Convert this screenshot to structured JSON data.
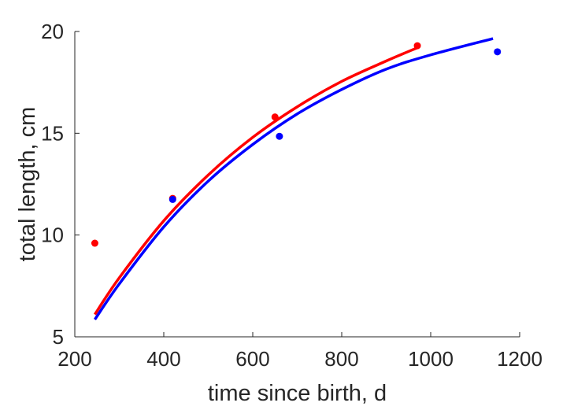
{
  "chart_data": {
    "type": "scatter",
    "title": "",
    "xlabel": "time since birth, d",
    "ylabel": "total length, cm",
    "xlim": [
      200,
      1200
    ],
    "ylim": [
      5,
      20
    ],
    "xticks": [
      200,
      400,
      600,
      800,
      1000,
      1200
    ],
    "yticks": [
      5,
      10,
      15,
      20
    ],
    "grid": false,
    "series": [
      {
        "color": "#ff0000",
        "points": [
          {
            "x": 245,
            "y": 9.6
          },
          {
            "x": 420,
            "y": 11.8
          },
          {
            "x": 650,
            "y": 15.8
          },
          {
            "x": 970,
            "y": 19.3
          }
        ],
        "fit": [
          {
            "x": 245,
            "y": 6.1
          },
          {
            "x": 300,
            "y": 7.9
          },
          {
            "x": 400,
            "y": 10.7
          },
          {
            "x": 500,
            "y": 12.95
          },
          {
            "x": 600,
            "y": 14.8
          },
          {
            "x": 700,
            "y": 16.3
          },
          {
            "x": 800,
            "y": 17.55
          },
          {
            "x": 900,
            "y": 18.55
          },
          {
            "x": 970,
            "y": 19.2
          }
        ]
      },
      {
        "color": "#0000ff",
        "points": [
          {
            "x": 420,
            "y": 11.75
          },
          {
            "x": 660,
            "y": 14.85
          },
          {
            "x": 1150,
            "y": 19.0
          }
        ],
        "fit": [
          {
            "x": 245,
            "y": 5.85
          },
          {
            "x": 300,
            "y": 7.6
          },
          {
            "x": 400,
            "y": 10.4
          },
          {
            "x": 500,
            "y": 12.65
          },
          {
            "x": 600,
            "y": 14.45
          },
          {
            "x": 700,
            "y": 15.95
          },
          {
            "x": 800,
            "y": 17.15
          },
          {
            "x": 900,
            "y": 18.15
          },
          {
            "x": 1000,
            "y": 18.85
          },
          {
            "x": 1140,
            "y": 19.65
          }
        ]
      }
    ]
  }
}
